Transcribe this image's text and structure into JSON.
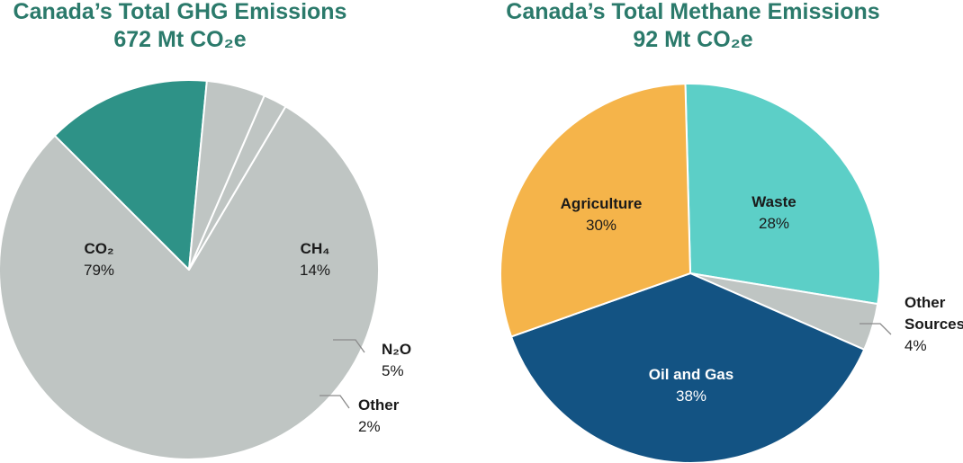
{
  "colors": {
    "title": "#2b7a6b",
    "co2": "#bfc5c3",
    "ch4": "#2e9287",
    "n2o": "#bfc5c3",
    "other": "#bfc5c3",
    "agriculture": "#f5b44a",
    "waste": "#5ccfc7",
    "other_sources": "#bfc5c3",
    "oil_gas": "#135383"
  },
  "chart_data": [
    {
      "type": "pie",
      "title": "Canada’s Total GHG Emissions",
      "subtitle": "672 Mt CO₂e",
      "slices": [
        {
          "key": "co2",
          "label": "CO₂",
          "value": 79,
          "value_label": "79%"
        },
        {
          "key": "ch4",
          "label": "CH₄",
          "value": 14,
          "value_label": "14%"
        },
        {
          "key": "n2o",
          "label": "N₂O",
          "value": 5,
          "value_label": "5%"
        },
        {
          "key": "other",
          "label": "Other",
          "value": 2,
          "value_label": "2%"
        }
      ]
    },
    {
      "type": "pie",
      "title": "Canada’s Total Methane Emissions",
      "subtitle": "92 Mt CO₂e",
      "slices": [
        {
          "key": "waste",
          "label": "Waste",
          "value": 28,
          "value_label": "28%"
        },
        {
          "key": "other_sources",
          "label": "Other Sources",
          "label_lines": [
            "Other",
            "Sources"
          ],
          "value": 4,
          "value_label": "4%"
        },
        {
          "key": "oil_gas",
          "label": "Oil and Gas",
          "value": 38,
          "value_label": "38%"
        },
        {
          "key": "agriculture",
          "label": "Agriculture",
          "value": 30,
          "value_label": "30%"
        }
      ]
    }
  ]
}
